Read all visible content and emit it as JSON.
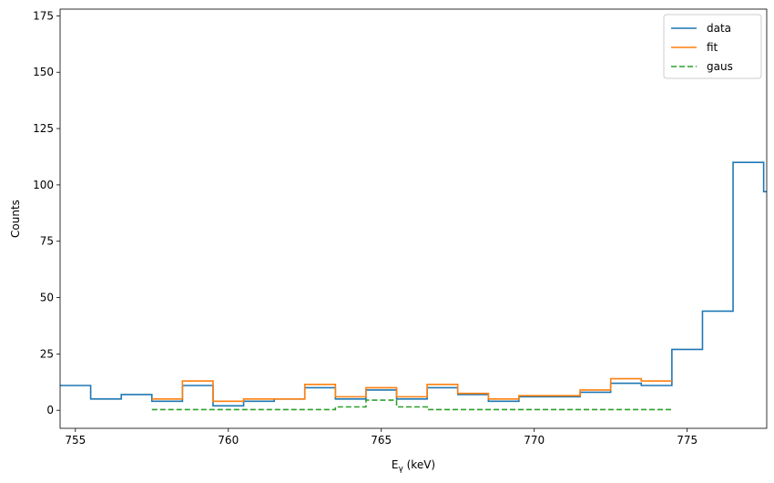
{
  "chart_data": {
    "type": "line",
    "xlabel": "E",
    "xlabel_sub": "γ",
    "xlabel_unit": " (keV)",
    "ylabel": "Counts",
    "xlim": [
      754.5,
      777.6
    ],
    "ylim": [
      -8,
      178
    ],
    "xticks": [
      {
        "value": 755,
        "label": "755"
      },
      {
        "value": 760,
        "label": "760"
      },
      {
        "value": 765,
        "label": "765"
      },
      {
        "value": 770,
        "label": "770"
      },
      {
        "value": 775,
        "label": "775"
      }
    ],
    "yticks": [
      {
        "value": 0,
        "label": "0"
      },
      {
        "value": 25,
        "label": "25"
      },
      {
        "value": 50,
        "label": "50"
      },
      {
        "value": 75,
        "label": "75"
      },
      {
        "value": 100,
        "label": "100"
      },
      {
        "value": 125,
        "label": "125"
      },
      {
        "value": 150,
        "label": "150"
      },
      {
        "value": 175,
        "label": "175"
      }
    ],
    "legend_position": "top-right",
    "series": [
      {
        "name": "data",
        "color": "#1f77b4",
        "dash": "solid",
        "x": [
          754.5,
          755.5,
          756.5,
          757.5,
          758.5,
          759.5,
          760.5,
          761.5,
          762.5,
          763.5,
          764.5,
          765.5,
          766.5,
          767.5,
          768.5,
          769.5,
          770.5,
          771.5,
          772.5,
          773.5,
          774.5,
          775.5,
          776.5,
          777.5
        ],
        "y": [
          11,
          5,
          7,
          4,
          11,
          2,
          4,
          5,
          10,
          5,
          9,
          5,
          10,
          7,
          4,
          6,
          6,
          8,
          12,
          11,
          27,
          44,
          110,
          97
        ]
      },
      {
        "name": "fit",
        "color": "#ff7f0e",
        "dash": "solid",
        "x": [
          757.5,
          758.5,
          759.5,
          760.5,
          761.5,
          762.5,
          763.5,
          764.5,
          765.5,
          766.5,
          767.5,
          768.5,
          769.5,
          770.5,
          771.5,
          772.5,
          773.5,
          774.5
        ],
        "y": [
          5,
          13,
          4,
          5,
          5,
          11.5,
          6,
          10,
          6,
          11.5,
          7.5,
          5,
          6.5,
          6.5,
          9,
          14,
          13,
          13
        ]
      },
      {
        "name": "gaus",
        "color": "#2ca02c",
        "dash": "dashed",
        "x": [
          757.5,
          763.5,
          764.5,
          765.5,
          766.5,
          774.5
        ],
        "y": [
          0.3,
          1.5,
          4.5,
          1.5,
          0.3,
          0.3
        ]
      }
    ]
  }
}
